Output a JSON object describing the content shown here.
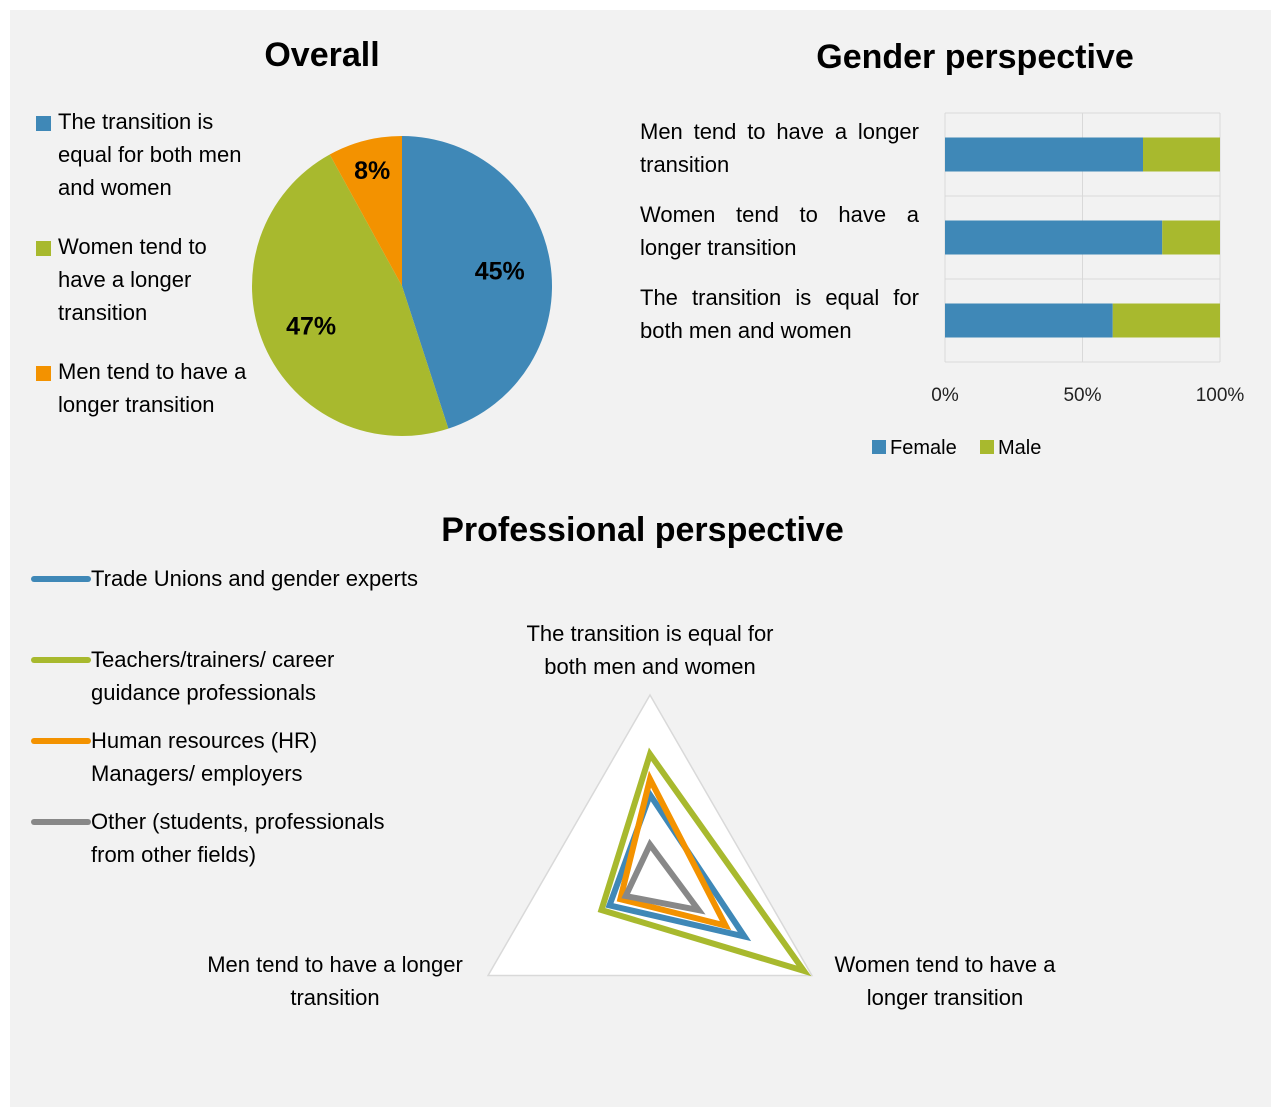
{
  "chart_data": [
    {
      "type": "pie",
      "title": "Overall",
      "categories": [
        "The transition is equal for both men and women",
        "Women tend to have a longer transition",
        "Men tend to have a longer transition"
      ],
      "values": [
        45,
        47,
        8
      ],
      "value_labels": [
        "45%",
        "47%",
        "8%"
      ],
      "colors": [
        "#3f88b7",
        "#a8b92e",
        "#f39200"
      ],
      "legend": "left"
    },
    {
      "type": "stacked_barh",
      "title": "Gender perspective",
      "categories": [
        "Men tend to have a longer transition",
        "Women tend to have a longer transition",
        "The transition is equal for both men and women"
      ],
      "series": [
        {
          "name": "Female",
          "color": "#3f88b7",
          "values": [
            72,
            79,
            61
          ]
        },
        {
          "name": "Male",
          "color": "#a8b92e",
          "values": [
            28,
            21,
            39
          ]
        }
      ],
      "xlim": [
        0,
        100
      ],
      "xticks": [
        {
          "value": 0,
          "label": "0%"
        },
        {
          "value": 50,
          "label": "50%"
        },
        {
          "value": 100,
          "label": "100%"
        }
      ],
      "grid": true,
      "legend": "bottom"
    },
    {
      "type": "radar",
      "title": "Professional perspective",
      "categories": [
        "The transition is equal for both men and women",
        "Women tend to have a longer transition",
        "Men tend to have a longer transition"
      ],
      "series": [
        {
          "name": "Trade Unions and gender experts",
          "color": "#3f88b7",
          "values": [
            28,
            35,
            15
          ]
        },
        {
          "name": "Teachers/trainers/ career guidance professionals",
          "color": "#a8b92e",
          "values": [
            41,
            57,
            18
          ]
        },
        {
          "name": "Human resources (HR) Managers/ employers",
          "color": "#f39200",
          "values": [
            33,
            28,
            11
          ]
        },
        {
          "name": "Other (students, professionals from other fields)",
          "color": "#888888",
          "values": [
            12,
            18,
            9
          ]
        }
      ],
      "rlim": [
        0,
        60
      ],
      "rticks": [
        20,
        40,
        60
      ],
      "grid": true,
      "legend": "left"
    }
  ]
}
